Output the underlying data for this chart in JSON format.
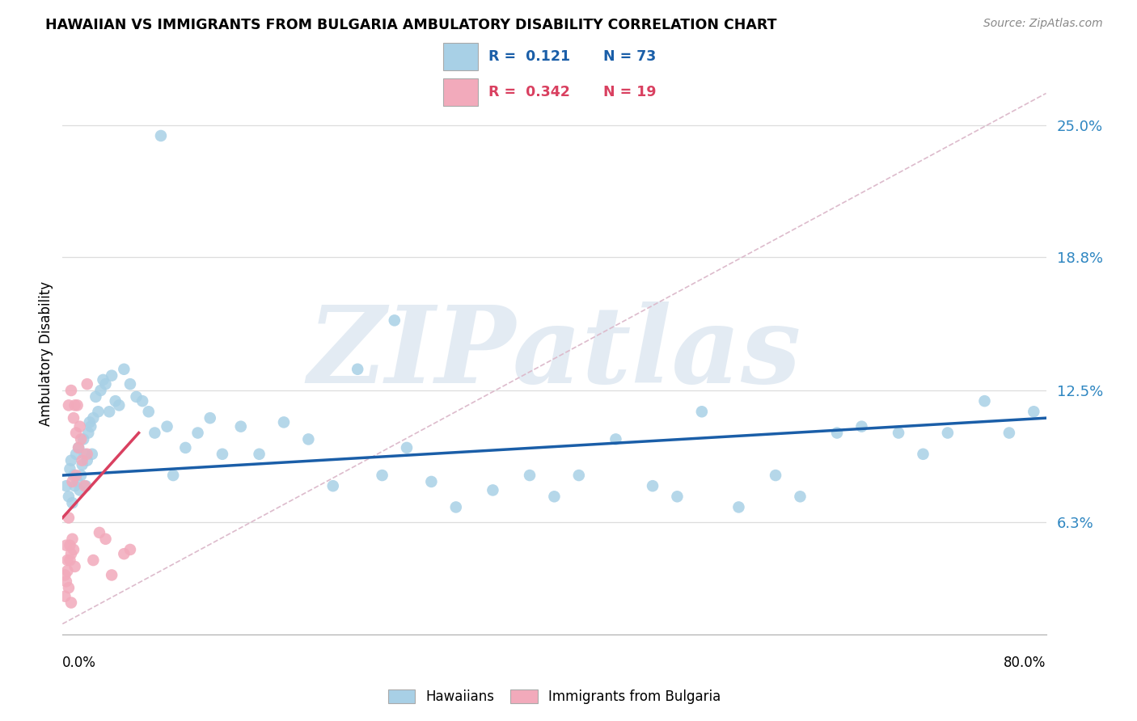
{
  "title": "HAWAIIAN VS IMMIGRANTS FROM BULGARIA AMBULATORY DISABILITY CORRELATION CHART",
  "source": "Source: ZipAtlas.com",
  "ylabel": "Ambulatory Disability",
  "ytick_labels": [
    "6.3%",
    "12.5%",
    "18.8%",
    "25.0%"
  ],
  "ytick_values": [
    6.3,
    12.5,
    18.8,
    25.0
  ],
  "xlim": [
    0.0,
    80.0
  ],
  "ylim": [
    1.0,
    27.5
  ],
  "watermark": "ZIPatlas",
  "blue_color": "#A8D0E6",
  "pink_color": "#F2AABB",
  "trend_blue": "#1A5EA8",
  "trend_pink": "#D94060",
  "R_blue": 0.121,
  "N_blue": 73,
  "R_pink": 0.342,
  "N_pink": 19,
  "haw_x": [
    0.3,
    0.5,
    0.6,
    0.7,
    0.8,
    0.9,
    1.0,
    1.1,
    1.2,
    1.3,
    1.4,
    1.5,
    1.6,
    1.7,
    1.8,
    1.9,
    2.0,
    2.1,
    2.2,
    2.3,
    2.4,
    2.5,
    2.7,
    2.9,
    3.1,
    3.3,
    3.5,
    3.8,
    4.0,
    4.3,
    4.6,
    5.0,
    5.5,
    6.0,
    6.5,
    7.0,
    7.5,
    8.0,
    8.5,
    9.0,
    10.0,
    11.0,
    12.0,
    13.0,
    14.5,
    16.0,
    18.0,
    20.0,
    22.0,
    24.0,
    26.0,
    28.0,
    30.0,
    32.0,
    35.0,
    38.0,
    40.0,
    42.0,
    45.0,
    48.0,
    50.0,
    52.0,
    55.0,
    58.0,
    60.0,
    63.0,
    65.0,
    68.0,
    70.0,
    72.0,
    75.0,
    77.0,
    79.0
  ],
  "haw_y": [
    8.0,
    7.5,
    8.8,
    9.2,
    7.2,
    8.5,
    8.0,
    9.5,
    8.2,
    9.8,
    7.8,
    8.5,
    9.0,
    10.2,
    9.5,
    8.0,
    9.2,
    10.5,
    11.0,
    10.8,
    9.5,
    11.2,
    12.2,
    11.5,
    12.5,
    13.0,
    12.8,
    11.5,
    13.2,
    12.0,
    11.8,
    13.5,
    12.8,
    12.2,
    12.0,
    11.5,
    10.5,
    24.5,
    10.8,
    8.5,
    9.8,
    10.5,
    11.2,
    9.5,
    10.8,
    9.5,
    11.0,
    10.2,
    8.0,
    13.5,
    8.5,
    9.8,
    8.2,
    7.0,
    7.8,
    8.5,
    7.5,
    8.5,
    10.2,
    8.0,
    7.5,
    11.5,
    7.0,
    8.5,
    7.5,
    10.5,
    10.8,
    10.5,
    9.5,
    10.5,
    12.0,
    10.5,
    11.5
  ],
  "haw_outlier2_x": 27.0,
  "haw_outlier2_y": 15.8,
  "bul_x": [
    0.2,
    0.3,
    0.4,
    0.5,
    0.6,
    0.7,
    0.8,
    0.9,
    1.0,
    1.1,
    1.2,
    1.4,
    1.6,
    1.8,
    2.0,
    2.5,
    3.0,
    4.0,
    5.5
  ],
  "bul_y": [
    3.8,
    5.2,
    4.5,
    6.5,
    5.2,
    4.8,
    5.5,
    5.0,
    4.2,
    8.5,
    11.8,
    10.8,
    9.2,
    8.0,
    12.8,
    4.5,
    5.8,
    3.8,
    5.0
  ],
  "bul_low_x": [
    0.2,
    0.3,
    0.4,
    0.5,
    0.6,
    0.7
  ],
  "bul_low_y": [
    2.8,
    3.5,
    4.0,
    3.2,
    4.5,
    2.5
  ],
  "bul_high_x": [
    0.5,
    0.7,
    0.9,
    1.1,
    1.3
  ],
  "bul_high_y": [
    11.8,
    12.5,
    11.2,
    10.5,
    9.8
  ],
  "bul_mid_x": [
    0.8,
    1.0,
    1.5,
    2.0,
    3.5,
    5.0
  ],
  "bul_mid_y": [
    8.2,
    11.8,
    10.2,
    9.5,
    5.5,
    4.8
  ]
}
